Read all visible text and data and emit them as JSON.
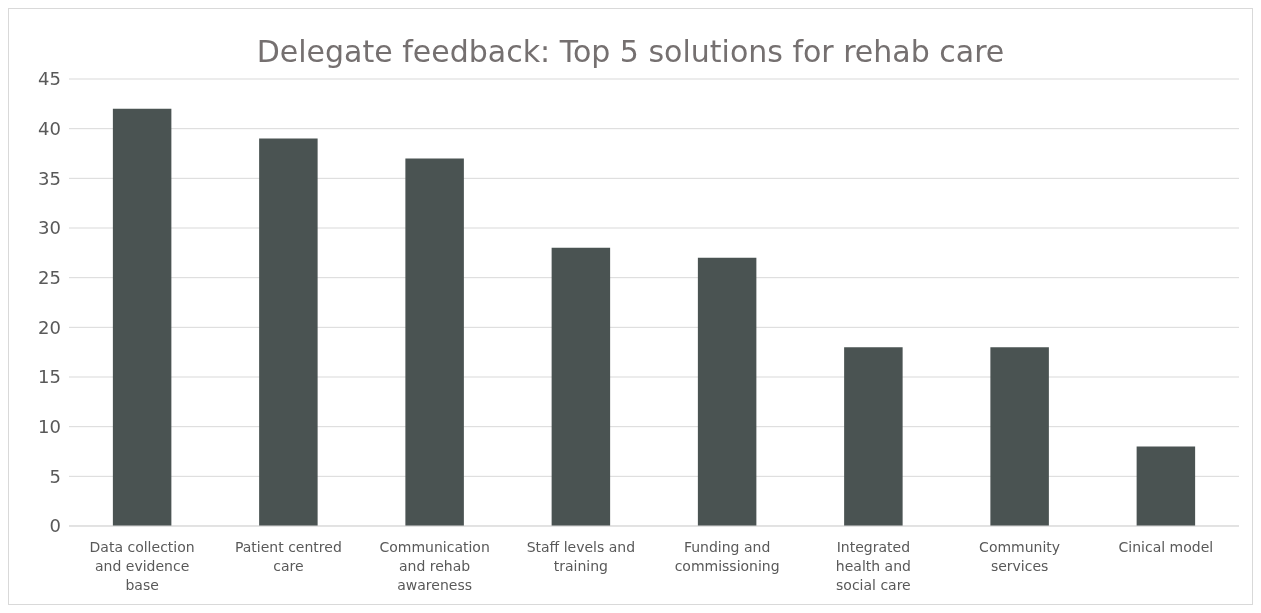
{
  "chart_data": {
    "type": "bar",
    "title": "Delegate feedback: Top 5 solutions for rehab care",
    "categories": [
      "Data collection and evidence base",
      "Patient centred care",
      "Communication and rehab awareness",
      "Staff levels and training",
      "Funding and commissioning",
      "Integrated health and social care",
      "Community services",
      "Cinical model"
    ],
    "values": [
      42,
      39,
      37,
      28,
      27,
      18,
      18,
      8
    ],
    "color": "#4a5352",
    "ylim": [
      0,
      45
    ],
    "yticks": [
      0,
      5,
      10,
      15,
      20,
      25,
      30,
      35,
      40,
      45
    ],
    "grid": "y"
  }
}
